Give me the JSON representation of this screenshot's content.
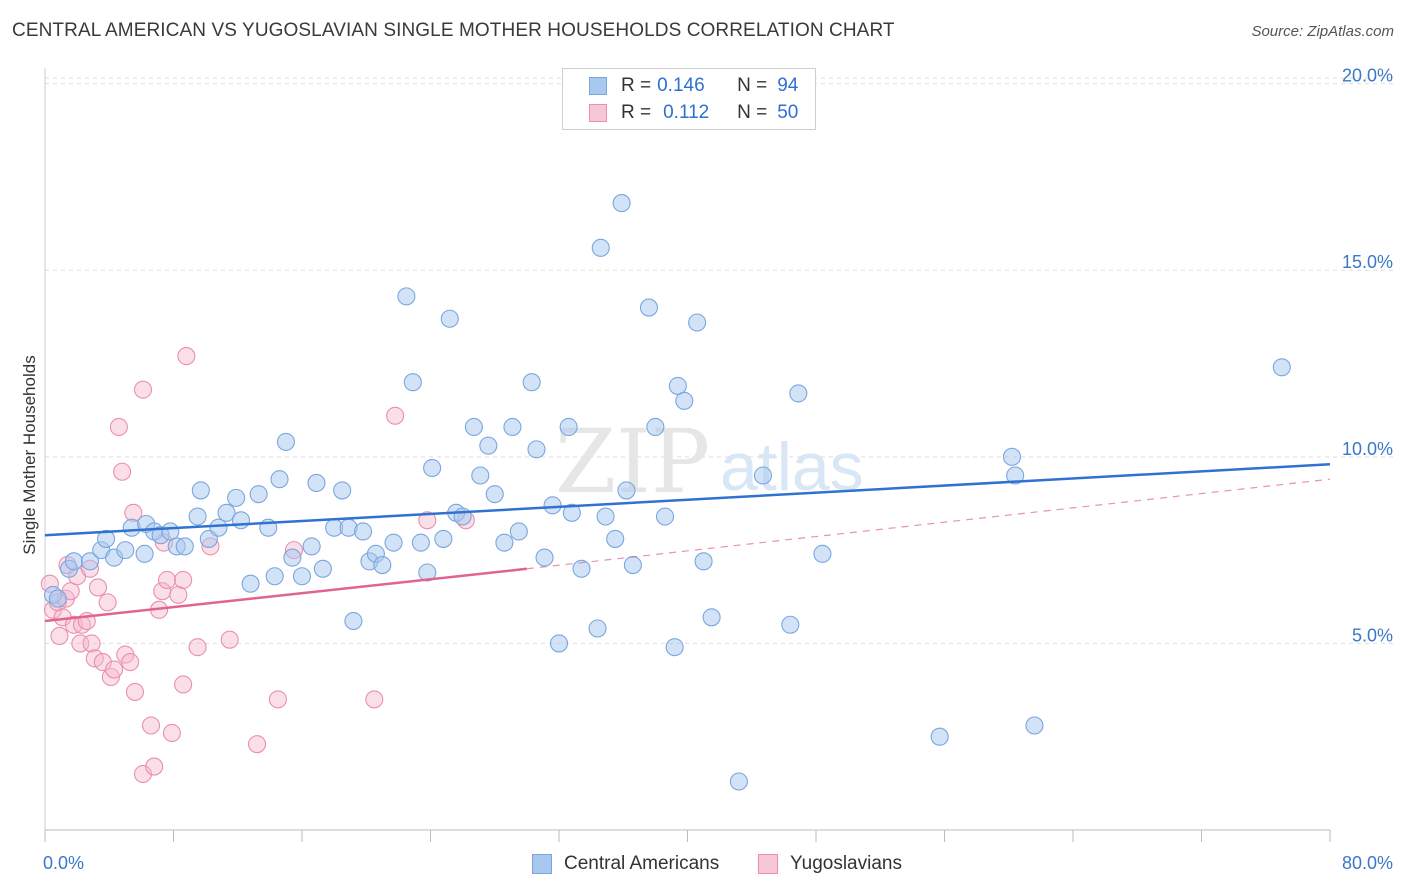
{
  "header": {
    "title": "CENTRAL AMERICAN VS YUGOSLAVIAN SINGLE MOTHER HOUSEHOLDS CORRELATION CHART",
    "source": "Source: ZipAtlas.com"
  },
  "legend": {
    "rows": [
      {
        "r_label": "R =",
        "r_value": "0.146",
        "n_label": "N =",
        "n_value": "94"
      },
      {
        "r_label": "R =",
        "r_value": "0.112",
        "n_label": "N =",
        "n_value": "50"
      }
    ]
  },
  "bottom_legend": {
    "central": "Central Americans",
    "yugoslav": "Yugoslavians"
  },
  "watermark": {
    "zip": "ZIP",
    "atlas": "atlas"
  },
  "colors": {
    "central_fill": "#a8c8f0",
    "central_stroke": "#7aa6de",
    "central_line": "#2f72d1",
    "yugoslav_fill": "#f7b8cc",
    "yugoslav_stroke": "#ea8fae",
    "yugoslav_line": "#e0648f",
    "axis_text": "#3a78c8",
    "grid": "#dddddd"
  },
  "chart_data": {
    "type": "scatter",
    "title": "CENTRAL AMERICAN VS YUGOSLAVIAN SINGLE MOTHER HOUSEHOLDS CORRELATION CHART",
    "xlabel": "",
    "ylabel": "Single Mother Households",
    "xlim": [
      0,
      80
    ],
    "ylim": [
      0,
      20.5
    ],
    "x_tick_labels": [
      "0.0%",
      "80.0%"
    ],
    "y_ticks": [
      5,
      10,
      15,
      20
    ],
    "y_tick_labels": [
      "5.0%",
      "10.0%",
      "15.0%",
      "20.0%"
    ],
    "grid": true,
    "legend_position": "top-center",
    "series": [
      {
        "name": "Central Americans",
        "r": 0.146,
        "n": 94,
        "trend": {
          "x0": 0,
          "y0": 7.9,
          "x1": 80,
          "y1": 9.8,
          "style": "solid"
        },
        "points": [
          [
            0.5,
            6.3
          ],
          [
            1.5,
            7.0
          ],
          [
            1.8,
            7.2
          ],
          [
            2.8,
            7.2
          ],
          [
            3.5,
            7.5
          ],
          [
            3.8,
            7.8
          ],
          [
            4.3,
            7.3
          ],
          [
            5.0,
            7.5
          ],
          [
            5.4,
            8.1
          ],
          [
            6.2,
            7.4
          ],
          [
            6.3,
            8.2
          ],
          [
            6.8,
            8.0
          ],
          [
            7.2,
            7.9
          ],
          [
            7.8,
            8.0
          ],
          [
            8.2,
            7.6
          ],
          [
            8.7,
            7.6
          ],
          [
            9.5,
            8.4
          ],
          [
            9.7,
            9.1
          ],
          [
            10.2,
            7.8
          ],
          [
            10.8,
            8.1
          ],
          [
            11.3,
            8.5
          ],
          [
            11.9,
            8.9
          ],
          [
            12.2,
            8.3
          ],
          [
            12.8,
            6.6
          ],
          [
            13.3,
            9.0
          ],
          [
            13.9,
            8.1
          ],
          [
            14.3,
            6.8
          ],
          [
            14.6,
            9.4
          ],
          [
            15.0,
            10.4
          ],
          [
            15.4,
            7.3
          ],
          [
            16.0,
            6.8
          ],
          [
            16.6,
            7.6
          ],
          [
            16.9,
            9.3
          ],
          [
            17.3,
            7.0
          ],
          [
            18.0,
            8.1
          ],
          [
            18.5,
            9.1
          ],
          [
            18.9,
            8.1
          ],
          [
            19.2,
            5.6
          ],
          [
            19.8,
            8.0
          ],
          [
            20.2,
            7.2
          ],
          [
            20.6,
            7.4
          ],
          [
            21.0,
            7.1
          ],
          [
            21.7,
            7.7
          ],
          [
            22.5,
            14.3
          ],
          [
            22.9,
            12.0
          ],
          [
            23.4,
            7.7
          ],
          [
            23.8,
            6.9
          ],
          [
            24.1,
            9.7
          ],
          [
            24.8,
            7.8
          ],
          [
            25.2,
            13.7
          ],
          [
            25.6,
            8.5
          ],
          [
            26.0,
            8.4
          ],
          [
            26.7,
            10.8
          ],
          [
            27.1,
            9.5
          ],
          [
            27.6,
            10.3
          ],
          [
            28.0,
            9.0
          ],
          [
            28.6,
            7.7
          ],
          [
            29.1,
            10.8
          ],
          [
            29.5,
            8.0
          ],
          [
            30.3,
            12.0
          ],
          [
            30.6,
            10.2
          ],
          [
            31.1,
            7.3
          ],
          [
            31.6,
            8.7
          ],
          [
            32.0,
            5.0
          ],
          [
            32.6,
            10.8
          ],
          [
            32.8,
            8.5
          ],
          [
            33.4,
            7.0
          ],
          [
            34.4,
            5.4
          ],
          [
            34.6,
            15.6
          ],
          [
            34.9,
            8.4
          ],
          [
            35.5,
            7.8
          ],
          [
            35.9,
            16.8
          ],
          [
            36.2,
            9.1
          ],
          [
            36.6,
            7.1
          ],
          [
            37.6,
            14.0
          ],
          [
            38.0,
            10.8
          ],
          [
            38.6,
            8.4
          ],
          [
            39.2,
            4.9
          ],
          [
            39.4,
            11.9
          ],
          [
            39.8,
            11.5
          ],
          [
            40.6,
            13.6
          ],
          [
            41.0,
            7.2
          ],
          [
            41.5,
            5.7
          ],
          [
            43.2,
            1.3
          ],
          [
            44.7,
            9.5
          ],
          [
            46.4,
            5.5
          ],
          [
            46.9,
            11.7
          ],
          [
            48.4,
            7.4
          ],
          [
            55.7,
            2.5
          ],
          [
            60.2,
            10.0
          ],
          [
            60.4,
            9.5
          ],
          [
            61.6,
            2.8
          ],
          [
            77.0,
            12.4
          ],
          [
            0.8,
            6.2
          ]
        ]
      },
      {
        "name": "Yugoslavians",
        "r": 0.112,
        "n": 50,
        "trend": {
          "x0": 0,
          "y0": 5.6,
          "x1": 30,
          "y1": 7.0,
          "style": "solid",
          "extended_to": [
            80,
            9.4
          ],
          "extension_style": "dashed"
        },
        "points": [
          [
            0.3,
            6.6
          ],
          [
            0.5,
            5.9
          ],
          [
            0.8,
            6.1
          ],
          [
            0.9,
            5.2
          ],
          [
            1.1,
            5.7
          ],
          [
            1.3,
            6.2
          ],
          [
            1.4,
            7.1
          ],
          [
            1.6,
            6.4
          ],
          [
            1.8,
            5.5
          ],
          [
            2.0,
            6.8
          ],
          [
            2.2,
            5.0
          ],
          [
            2.3,
            5.5
          ],
          [
            2.6,
            5.6
          ],
          [
            2.9,
            5.0
          ],
          [
            3.1,
            4.6
          ],
          [
            3.3,
            6.5
          ],
          [
            3.6,
            4.5
          ],
          [
            3.9,
            6.1
          ],
          [
            4.1,
            4.1
          ],
          [
            4.3,
            4.3
          ],
          [
            4.6,
            10.8
          ],
          [
            4.8,
            9.6
          ],
          [
            5.0,
            4.7
          ],
          [
            5.3,
            4.5
          ],
          [
            5.5,
            8.5
          ],
          [
            5.6,
            3.7
          ],
          [
            6.1,
            11.8
          ],
          [
            6.1,
            1.5
          ],
          [
            6.6,
            2.8
          ],
          [
            6.8,
            1.7
          ],
          [
            7.1,
            5.9
          ],
          [
            7.3,
            6.4
          ],
          [
            7.4,
            7.7
          ],
          [
            7.6,
            6.7
          ],
          [
            7.9,
            2.6
          ],
          [
            8.3,
            6.3
          ],
          [
            8.6,
            6.7
          ],
          [
            8.6,
            3.9
          ],
          [
            8.8,
            12.7
          ],
          [
            9.5,
            4.9
          ],
          [
            10.3,
            7.6
          ],
          [
            11.5,
            5.1
          ],
          [
            13.2,
            2.3
          ],
          [
            14.5,
            3.5
          ],
          [
            15.5,
            7.5
          ],
          [
            20.5,
            3.5
          ],
          [
            21.8,
            11.1
          ],
          [
            23.8,
            8.3
          ],
          [
            26.2,
            8.3
          ],
          [
            2.8,
            7.0
          ]
        ]
      }
    ]
  }
}
